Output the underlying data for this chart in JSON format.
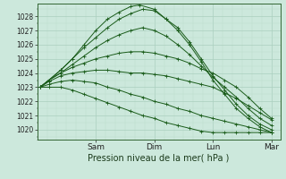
{
  "title": "Pression niveau de la mer( hPa )",
  "bg_color": "#cce8dc",
  "plot_bg_color": "#cce8dc",
  "grid_major_color": "#aacfbe",
  "grid_minor_color": "#bcdccc",
  "line_color": "#1a5c1a",
  "ylim": [
    1019.3,
    1028.9
  ],
  "yticks": [
    1020,
    1021,
    1022,
    1023,
    1024,
    1025,
    1026,
    1027,
    1028
  ],
  "xlim": [
    0.0,
    4.15
  ],
  "xtick_positions": [
    1.0,
    2.0,
    3.0,
    4.0
  ],
  "xtick_labels": [
    "Sam",
    "Dim",
    "Lun",
    "Mar"
  ],
  "lines": [
    {
      "x": [
        0.05,
        0.2,
        0.4,
        0.6,
        0.8,
        1.0,
        1.2,
        1.4,
        1.6,
        1.75,
        2.0,
        2.2,
        2.4,
        2.6,
        2.8,
        3.0,
        3.2,
        3.4,
        3.6,
        3.8,
        4.0
      ],
      "y": [
        1023.0,
        1023.5,
        1024.2,
        1025.0,
        1026.0,
        1027.0,
        1027.8,
        1028.3,
        1028.7,
        1028.8,
        1028.5,
        1027.8,
        1027.0,
        1026.0,
        1024.8,
        1023.5,
        1022.5,
        1021.5,
        1020.8,
        1020.2,
        1019.8
      ]
    },
    {
      "x": [
        0.05,
        0.2,
        0.4,
        0.6,
        0.8,
        1.0,
        1.2,
        1.4,
        1.6,
        1.8,
        2.0,
        2.2,
        2.4,
        2.6,
        2.8,
        3.0,
        3.2,
        3.4,
        3.6,
        3.8,
        4.0
      ],
      "y": [
        1023.0,
        1023.5,
        1024.2,
        1025.0,
        1025.8,
        1026.5,
        1027.2,
        1027.8,
        1028.2,
        1028.5,
        1028.4,
        1027.8,
        1027.2,
        1026.2,
        1025.0,
        1023.8,
        1022.8,
        1021.8,
        1021.0,
        1020.4,
        1020.0
      ]
    },
    {
      "x": [
        0.05,
        0.2,
        0.4,
        0.6,
        0.8,
        1.0,
        1.2,
        1.4,
        1.6,
        1.8,
        2.0,
        2.2,
        2.4,
        2.6,
        2.8,
        3.0,
        3.2,
        3.4,
        3.6,
        3.8,
        4.0
      ],
      "y": [
        1023.0,
        1023.5,
        1024.0,
        1024.6,
        1025.2,
        1025.8,
        1026.3,
        1026.7,
        1027.0,
        1027.2,
        1027.0,
        1026.6,
        1026.0,
        1025.3,
        1024.5,
        1023.7,
        1023.0,
        1022.3,
        1021.5,
        1020.8,
        1020.3
      ]
    },
    {
      "x": [
        0.05,
        0.2,
        0.4,
        0.6,
        0.8,
        1.0,
        1.2,
        1.4,
        1.6,
        1.8,
        2.0,
        2.2,
        2.4,
        2.6,
        2.8,
        3.0,
        3.2,
        3.4,
        3.6,
        3.8,
        4.0
      ],
      "y": [
        1023.0,
        1023.5,
        1024.0,
        1024.4,
        1024.7,
        1025.0,
        1025.2,
        1025.4,
        1025.5,
        1025.5,
        1025.4,
        1025.2,
        1025.0,
        1024.7,
        1024.3,
        1024.0,
        1023.5,
        1023.0,
        1022.3,
        1021.5,
        1020.8
      ]
    },
    {
      "x": [
        0.05,
        0.2,
        0.4,
        0.6,
        0.8,
        1.0,
        1.2,
        1.4,
        1.6,
        1.8,
        2.0,
        2.2,
        2.4,
        2.6,
        2.8,
        3.0,
        3.2,
        3.4,
        3.6,
        3.8,
        4.0
      ],
      "y": [
        1023.0,
        1023.4,
        1023.8,
        1024.0,
        1024.1,
        1024.2,
        1024.2,
        1024.1,
        1024.0,
        1024.0,
        1023.9,
        1023.8,
        1023.6,
        1023.4,
        1023.2,
        1023.0,
        1022.6,
        1022.2,
        1021.7,
        1021.2,
        1020.7
      ]
    },
    {
      "x": [
        0.05,
        0.2,
        0.4,
        0.6,
        0.8,
        1.0,
        1.2,
        1.4,
        1.6,
        1.8,
        2.0,
        2.2,
        2.4,
        2.6,
        2.8,
        3.0,
        3.2,
        3.4,
        3.6,
        3.8,
        4.0
      ],
      "y": [
        1023.0,
        1023.2,
        1023.4,
        1023.5,
        1023.4,
        1023.3,
        1023.0,
        1022.8,
        1022.5,
        1022.3,
        1022.0,
        1021.8,
        1021.5,
        1021.3,
        1021.0,
        1020.8,
        1020.6,
        1020.4,
        1020.2,
        1020.0,
        1019.8
      ]
    },
    {
      "x": [
        0.05,
        0.2,
        0.4,
        0.6,
        0.8,
        1.0,
        1.2,
        1.4,
        1.6,
        1.8,
        2.0,
        2.2,
        2.4,
        2.6,
        2.8,
        3.0,
        3.2,
        3.4,
        3.6,
        3.8,
        4.0
      ],
      "y": [
        1023.0,
        1023.0,
        1023.0,
        1022.8,
        1022.5,
        1022.2,
        1021.9,
        1021.6,
        1021.3,
        1021.0,
        1020.8,
        1020.5,
        1020.3,
        1020.1,
        1019.9,
        1019.8,
        1019.8,
        1019.8,
        1019.8,
        1019.8,
        1019.8
      ]
    }
  ]
}
